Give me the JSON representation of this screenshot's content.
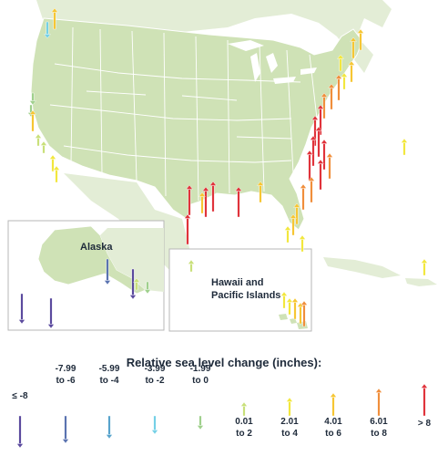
{
  "insets": {
    "alaska_label": "Alaska",
    "hawaii_label_line1": "Hawaii and",
    "hawaii_label_line2": "Pacific Islands"
  },
  "legend": {
    "title": "Relative sea level change (inches):",
    "categories": [
      {
        "line1": "≤ -8",
        "line2": "",
        "color": "#5b4a9e",
        "direction": "down",
        "magnitude": 5
      },
      {
        "line1": "-7.99",
        "line2": "to -6",
        "color": "#5a73b0",
        "direction": "down",
        "magnitude": 4
      },
      {
        "line1": "-5.99",
        "line2": "to -4",
        "color": "#58a3cc",
        "direction": "down",
        "magnitude": 3
      },
      {
        "line1": "-3.99",
        "line2": "to -2",
        "color": "#74d0e6",
        "direction": "down",
        "magnitude": 2
      },
      {
        "line1": "-1.99",
        "line2": "to 0",
        "color": "#9fd08c",
        "direction": "down",
        "magnitude": 1
      },
      {
        "line1": "0.01",
        "line2": "to 2",
        "color": "#c9e07a",
        "direction": "up",
        "magnitude": 1
      },
      {
        "line1": "2.01",
        "line2": "to 4",
        "color": "#f2e73d",
        "direction": "up",
        "magnitude": 2
      },
      {
        "line1": "4.01",
        "line2": "to 6",
        "color": "#f6c633",
        "direction": "up",
        "magnitude": 3
      },
      {
        "line1": "6.01",
        "line2": "to 8",
        "color": "#f08e3b",
        "direction": "up",
        "magnitude": 4
      },
      {
        "line1": "> 8",
        "line2": "",
        "color": "#e0333b",
        "direction": "up",
        "magnitude": 5
      }
    ]
  },
  "colors": {
    "land": "#cfe2b6",
    "land_border": "#ffffff",
    "neighbor_land": "#e3edd6",
    "water": "#ffffff"
  },
  "stations": [
    {
      "cat": 7,
      "region": "west"
    },
    {
      "cat": 3,
      "region": "west"
    },
    {
      "cat": 4,
      "region": "west"
    },
    {
      "cat": 4,
      "region": "west"
    },
    {
      "cat": 5,
      "region": "west"
    },
    {
      "cat": 6,
      "region": "west"
    },
    {
      "cat": 6,
      "region": "west"
    },
    {
      "cat": 5,
      "region": "west"
    },
    {
      "cat": 7,
      "region": "west"
    },
    {
      "cat": 7,
      "region": "northeast"
    },
    {
      "cat": 7,
      "region": "northeast"
    },
    {
      "cat": 6,
      "region": "northeast"
    },
    {
      "cat": 6,
      "region": "northeast"
    },
    {
      "cat": 7,
      "region": "northeast"
    },
    {
      "cat": 8,
      "region": "northeast"
    },
    {
      "cat": 8,
      "region": "northeast"
    },
    {
      "cat": 8,
      "region": "northeast"
    },
    {
      "cat": 9,
      "region": "midatlantic"
    },
    {
      "cat": 9,
      "region": "midatlantic"
    },
    {
      "cat": 9,
      "region": "midatlantic"
    },
    {
      "cat": 9,
      "region": "midatlantic"
    },
    {
      "cat": 9,
      "region": "midatlantic"
    },
    {
      "cat": 8,
      "region": "midatlantic"
    },
    {
      "cat": 9,
      "region": "midatlantic"
    },
    {
      "cat": 9,
      "region": "midatlantic"
    },
    {
      "cat": 8,
      "region": "southeast"
    },
    {
      "cat": 8,
      "region": "southeast"
    },
    {
      "cat": 7,
      "region": "southeast"
    },
    {
      "cat": 7,
      "region": "southeast"
    },
    {
      "cat": 6,
      "region": "southeast"
    },
    {
      "cat": 7,
      "region": "gulf"
    },
    {
      "cat": 9,
      "region": "gulf"
    },
    {
      "cat": 9,
      "region": "gulf"
    },
    {
      "cat": 9,
      "region": "gulf"
    },
    {
      "cat": 9,
      "region": "gulf"
    },
    {
      "cat": 9,
      "region": "gulf"
    },
    {
      "cat": 7,
      "region": "gulf"
    },
    {
      "cat": 6,
      "region": "gulf"
    },
    {
      "cat": 6,
      "region": "atlantic"
    },
    {
      "cat": 0,
      "region": "alaska"
    },
    {
      "cat": 0,
      "region": "alaska"
    },
    {
      "cat": 1,
      "region": "alaska"
    },
    {
      "cat": 0,
      "region": "alaska"
    },
    {
      "cat": 4,
      "region": "alaska"
    },
    {
      "cat": 6,
      "region": "pacific"
    },
    {
      "cat": 6,
      "region": "pacific"
    },
    {
      "cat": 7,
      "region": "pacific"
    },
    {
      "cat": 7,
      "region": "pacific"
    },
    {
      "cat": 8,
      "region": "pacific"
    },
    {
      "cat": 5,
      "region": "pacific"
    },
    {
      "cat": 6,
      "region": "pacific"
    },
    {
      "cat": 5,
      "region": "pacific"
    }
  ]
}
